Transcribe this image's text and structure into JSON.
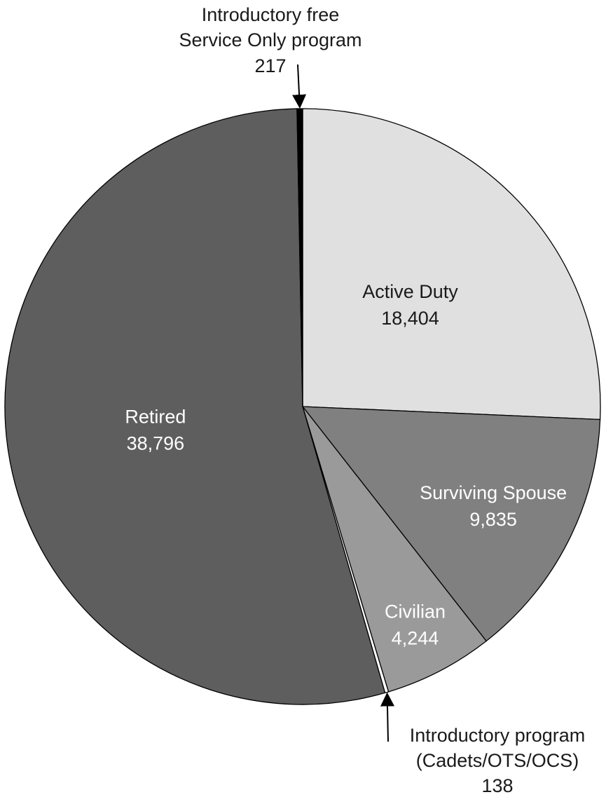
{
  "chart_data": {
    "type": "pie",
    "slices": [
      {
        "name": "Active Duty",
        "value": 18404,
        "value_label": "18,404",
        "color": "#e0e0e0",
        "text_color": "#1a1a1a"
      },
      {
        "name": "Surviving Spouse",
        "value": 9835,
        "value_label": "9,835",
        "color": "#808080",
        "text_color": "#ffffff"
      },
      {
        "name": "Civilian",
        "value": 4244,
        "value_label": "4,244",
        "color": "#9a9a9a",
        "text_color": "#ffffff"
      },
      {
        "name_lines": [
          "Introductory program",
          "(Cadets/OTS/OCS)"
        ],
        "value": 138,
        "value_label": "138",
        "color": "#ffffff",
        "text_color": "#1a1a1a"
      },
      {
        "name": "Retired",
        "value": 38796,
        "value_label": "38,796",
        "color": "#5e5e5e",
        "text_color": "#ffffff"
      },
      {
        "name_lines": [
          "Introductory free",
          "Service Only program"
        ],
        "value": 217,
        "value_label": "217",
        "color": "#000000",
        "text_color": "#1a1a1a"
      }
    ],
    "start": "top, clockwise",
    "legend": "none"
  }
}
